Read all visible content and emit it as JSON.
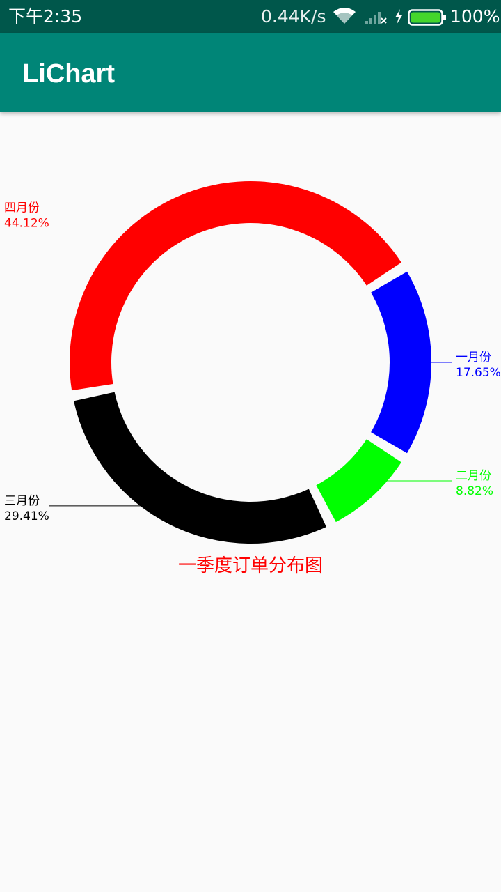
{
  "status_bar": {
    "time": "下午2:35",
    "network_speed": "0.44K/s",
    "battery_percent": "100%",
    "icons": [
      "wifi-icon",
      "signal-icon",
      "charging-icon",
      "battery-icon"
    ],
    "battery_level": 1.0,
    "battery_color": "#44d62c"
  },
  "app_bar": {
    "title": "LiChart",
    "color": "#008577"
  },
  "chart_data": {
    "type": "pie",
    "style": "donut",
    "title": "一季度订单分布图",
    "title_color": "#ff0000",
    "start_angle_deg": 0,
    "slices": [
      {
        "name": "一月份",
        "percent_label": "17.65%",
        "value": 17.65,
        "color": "#0000ff"
      },
      {
        "name": "二月份",
        "percent_label": "8.82%",
        "value": 8.82,
        "color": "#00ff00"
      },
      {
        "name": "三月份",
        "percent_label": "29.41%",
        "value": 29.41,
        "color": "#000000"
      },
      {
        "name": "四月份",
        "percent_label": "44.12%",
        "value": 44.12,
        "color": "#ff0000"
      }
    ]
  }
}
